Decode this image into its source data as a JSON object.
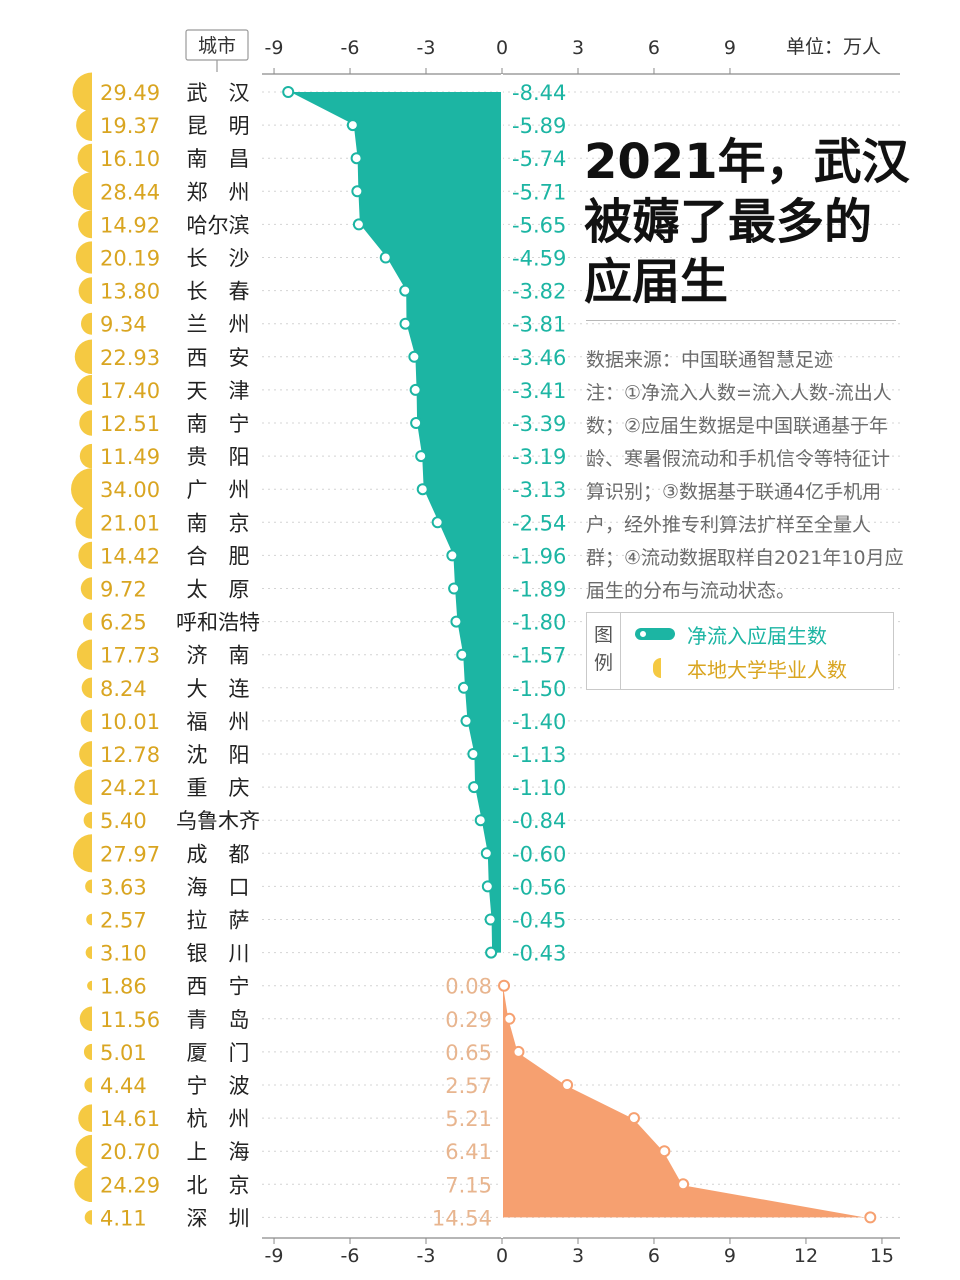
{
  "page": {
    "title_lines": [
      "2021年，武汉",
      "被薅了最多的",
      "应届生"
    ],
    "unit_label": "单位：万人",
    "source": "数据来源：中国联通智慧足迹",
    "note": "注：①净流入人数=流入人数-流出人数；②应届生数据是中国联通基于年龄、寒暑假流动和手机信令等特征计算识别；③数据基于联通4亿手机用户，经外推专利算法扩样至全量人群；④流动数据取样自2021年10月应届生的分布与流动状态。",
    "legend_title": [
      "图",
      "例"
    ],
    "legend_items": [
      {
        "label": "净流入应届生数",
        "color": "#1cb5a3",
        "icon": "teal-line-swatch"
      },
      {
        "label": "本地大学毕业人数",
        "color": "#f5c942",
        "icon": "yellow-half-circle-swatch"
      }
    ]
  },
  "chart_data": {
    "type": "bar",
    "orientation": "horizontal",
    "column_header": "城市",
    "x_ticks_top": [
      "-9",
      "-6",
      "-3",
      "0",
      "3",
      "6",
      "9"
    ],
    "x_ticks_bottom": [
      "-9",
      "-6",
      "-3",
      "0",
      "3",
      "6",
      "9",
      "12",
      "15"
    ],
    "xlim": [
      -9.6,
      15.6
    ],
    "colors": {
      "negative": "#1cb5a3",
      "positive": "#f6a070",
      "graduates": "#f5c942",
      "graduates_text": "#d9a521",
      "positive_text": "#e8b58f"
    },
    "categories": [
      "武　汉",
      "昆　明",
      "南　昌",
      "郑　州",
      "哈尔滨",
      "长　沙",
      "长　春",
      "兰　州",
      "西　安",
      "天　津",
      "南　宁",
      "贵　阳",
      "广　州",
      "南　京",
      "合　肥",
      "太　原",
      "呼和浩特",
      "济　南",
      "大　连",
      "福　州",
      "沈　阳",
      "重　庆",
      "乌鲁木齐",
      "成　都",
      "海　口",
      "拉　萨",
      "银　川",
      "西　宁",
      "青　岛",
      "厦　门",
      "宁　波",
      "杭　州",
      "上　海",
      "北　京",
      "深　圳"
    ],
    "series": [
      {
        "name": "净流入应届生数",
        "values": [
          -8.44,
          -5.89,
          -5.74,
          -5.71,
          -5.65,
          -4.59,
          -3.82,
          -3.81,
          -3.46,
          -3.41,
          -3.39,
          -3.19,
          -3.13,
          -2.54,
          -1.96,
          -1.89,
          -1.8,
          -1.57,
          -1.5,
          -1.4,
          -1.13,
          -1.1,
          -0.84,
          -0.6,
          -0.56,
          -0.45,
          -0.43,
          0.08,
          0.29,
          0.65,
          2.57,
          5.21,
          6.41,
          7.15,
          14.54
        ]
      },
      {
        "name": "本地大学毕业人数",
        "values": [
          29.49,
          19.37,
          16.1,
          28.44,
          14.92,
          20.19,
          13.8,
          9.34,
          22.93,
          17.4,
          12.51,
          11.49,
          34.0,
          21.01,
          14.42,
          9.72,
          6.25,
          17.73,
          8.24,
          10.01,
          12.78,
          24.21,
          5.4,
          27.97,
          3.63,
          2.57,
          3.1,
          1.86,
          11.56,
          5.01,
          4.44,
          14.61,
          20.7,
          24.29,
          4.11
        ]
      }
    ],
    "value_labels": [
      "-8.44",
      "-5.89",
      "-5.74",
      "-5.71",
      "-5.65",
      "-4.59",
      "-3.82",
      "-3.81",
      "-3.46",
      "-3.41",
      "-3.39",
      "-3.19",
      "-3.13",
      "-2.54",
      "-1.96",
      "-1.89",
      "-1.80",
      "-1.57",
      "-1.50",
      "-1.40",
      "-1.13",
      "-1.10",
      "-0.84",
      "-0.60",
      "-0.56",
      "-0.45",
      "-0.43",
      "0.08",
      "0.29",
      "0.65",
      "2.57",
      "5.21",
      "6.41",
      "7.15",
      "14.54"
    ],
    "graduate_labels": [
      "29.49",
      "19.37",
      "16.10",
      "28.44",
      "14.92",
      "20.19",
      "13.80",
      "9.34",
      "22.93",
      "17.40",
      "12.51",
      "11.49",
      "34.00",
      "21.01",
      "14.42",
      "9.72",
      "6.25",
      "17.73",
      "8.24",
      "10.01",
      "12.78",
      "24.21",
      "5.40",
      "27.97",
      "3.63",
      "2.57",
      "3.10",
      "1.86",
      "11.56",
      "5.01",
      "4.44",
      "14.61",
      "20.70",
      "24.29",
      "4.11"
    ],
    "grid": true
  }
}
